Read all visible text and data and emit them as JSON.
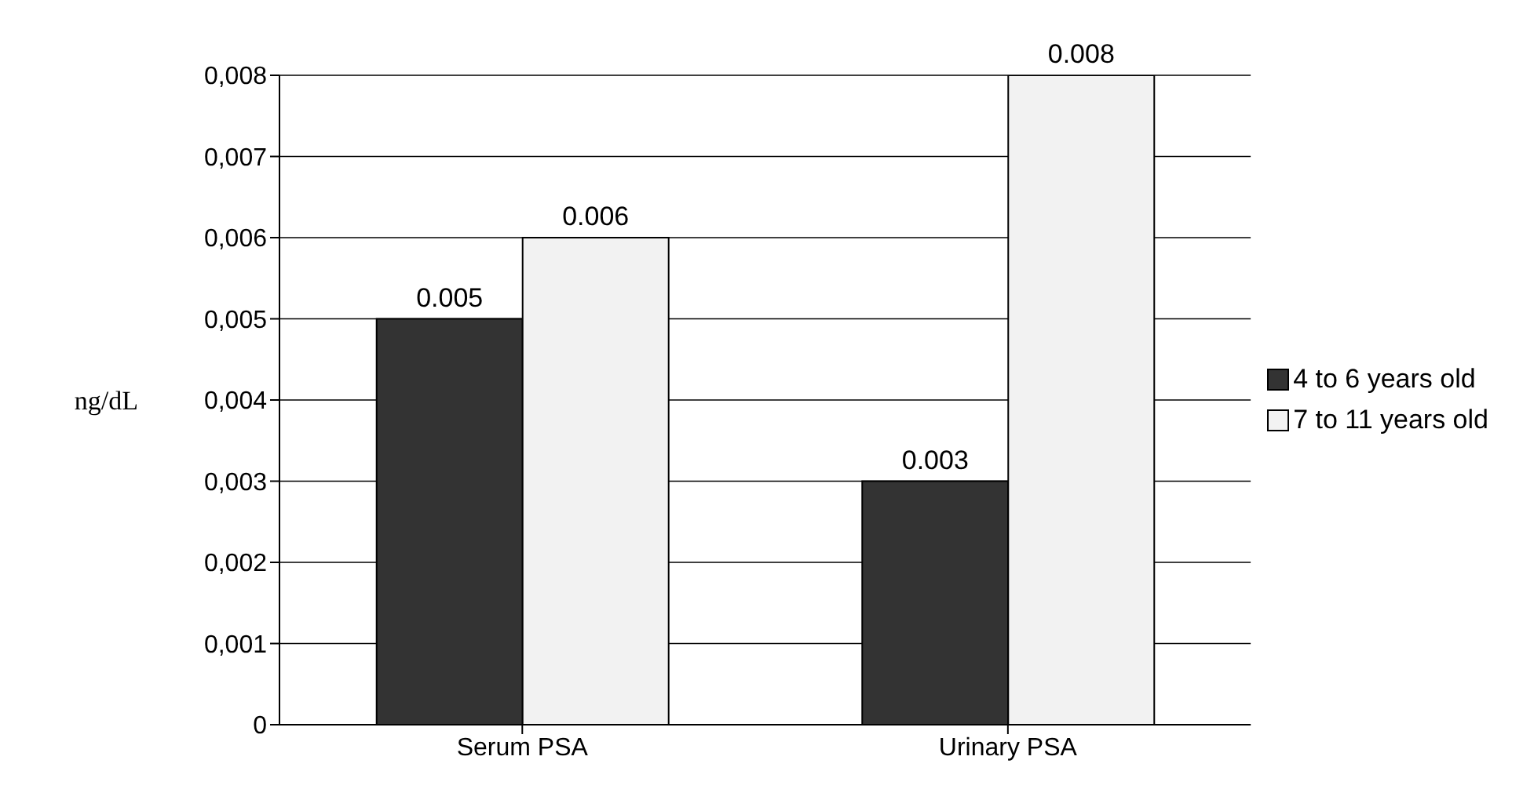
{
  "chart_data": {
    "type": "bar",
    "ylabel": "ng/dL",
    "categories": [
      "Serum PSA",
      "Urinary PSA"
    ],
    "series": [
      {
        "name": "4 to 6 years old",
        "color": "#333333",
        "values": [
          0.005,
          0.003
        ],
        "value_labels": [
          "0.005",
          "0.003"
        ]
      },
      {
        "name": "7 to 11 years old",
        "color": "#f2f2f2",
        "values": [
          0.006,
          0.008
        ],
        "value_labels": [
          "0.006",
          "0.008"
        ]
      }
    ],
    "ylim": [
      0,
      0.008
    ],
    "yticks": [
      0,
      {
        "value": 0.001,
        "label": "0,001"
      },
      {
        "value": 0.002,
        "label": "0,002"
      },
      {
        "value": 0.003,
        "label": "0,003"
      },
      {
        "value": 0.004,
        "label": "0,004"
      },
      {
        "value": 0.005,
        "label": "0,005"
      },
      {
        "value": 0.006,
        "label": "0,006"
      },
      {
        "value": 0.007,
        "label": "0,007"
      },
      {
        "value": 0.008,
        "label": "0,008"
      }
    ],
    "grid": "y",
    "legend": "right"
  }
}
